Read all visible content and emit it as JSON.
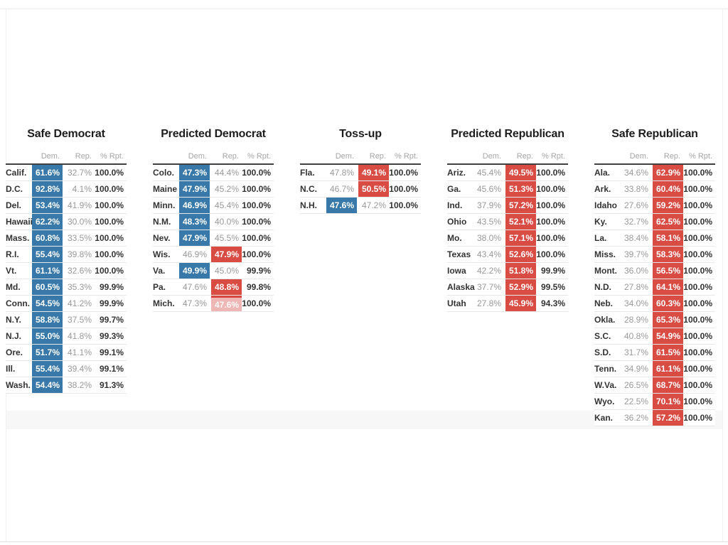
{
  "colors": {
    "dem_win_fill": "#3879aa",
    "rep_win_fill": "#d94c43",
    "rep_leading_fill": "#eeb6b4",
    "rep_leading_edge": "#d6453e",
    "muted_value_text": "#999999",
    "state_text": "#333333",
    "header_text": "#a6a6a6"
  },
  "chart_data": {
    "type": "table",
    "legend_note": "winner values: dem = blue filled Democratic cell, rep = red filled Republican cell, rep_leading = light pink Republican cell (uncalled, leading)",
    "columns": {
      "state": "",
      "dem": "Dem.",
      "rep": "Rep.",
      "rpt": "% Rpt."
    },
    "groups": [
      {
        "title": "Safe Democrat",
        "slug": "safe-democrat",
        "rows": [
          [
            "Calif.",
            "61.6%",
            "32.7%",
            "100.0%",
            "dem"
          ],
          [
            "D.C.",
            "92.8%",
            "4.1%",
            "100.0%",
            "dem"
          ],
          [
            "Del.",
            "53.4%",
            "41.9%",
            "100.0%",
            "dem"
          ],
          [
            "Hawaii",
            "62.2%",
            "30.0%",
            "100.0%",
            "dem"
          ],
          [
            "Mass.",
            "60.8%",
            "33.5%",
            "100.0%",
            "dem"
          ],
          [
            "R.I.",
            "55.4%",
            "39.8%",
            "100.0%",
            "dem"
          ],
          [
            "Vt.",
            "61.1%",
            "32.6%",
            "100.0%",
            "dem"
          ],
          [
            "Md.",
            "60.5%",
            "35.3%",
            "99.9%",
            "dem"
          ],
          [
            "Conn.",
            "54.5%",
            "41.2%",
            "99.9%",
            "dem"
          ],
          [
            "N.Y.",
            "58.8%",
            "37.5%",
            "99.7%",
            "dem"
          ],
          [
            "N.J.",
            "55.0%",
            "41.8%",
            "99.3%",
            "dem"
          ],
          [
            "Ore.",
            "51.7%",
            "41.1%",
            "99.1%",
            "dem"
          ],
          [
            "Ill.",
            "55.4%",
            "39.4%",
            "99.1%",
            "dem"
          ],
          [
            "Wash.",
            "54.4%",
            "38.2%",
            "91.3%",
            "dem"
          ]
        ]
      },
      {
        "title": "Predicted Democrat",
        "slug": "predicted-democrat",
        "rows": [
          [
            "Colo.",
            "47.3%",
            "44.4%",
            "100.0%",
            "dem"
          ],
          [
            "Maine",
            "47.9%",
            "45.2%",
            "100.0%",
            "dem"
          ],
          [
            "Minn.",
            "46.9%",
            "45.4%",
            "100.0%",
            "dem"
          ],
          [
            "N.M.",
            "48.3%",
            "40.0%",
            "100.0%",
            "dem"
          ],
          [
            "Nev.",
            "47.9%",
            "45.5%",
            "100.0%",
            "dem"
          ],
          [
            "Wis.",
            "46.9%",
            "47.9%",
            "100.0%",
            "rep"
          ],
          [
            "Va.",
            "49.9%",
            "45.0%",
            "99.9%",
            "dem"
          ],
          [
            "Pa.",
            "47.6%",
            "48.8%",
            "99.8%",
            "rep"
          ],
          [
            "Mich.",
            "47.3%",
            "47.6%",
            "100.0%",
            "rep_leading"
          ]
        ]
      },
      {
        "title": "Toss-up",
        "slug": "toss-up",
        "rows": [
          [
            "Fla.",
            "47.8%",
            "49.1%",
            "100.0%",
            "rep"
          ],
          [
            "N.C.",
            "46.7%",
            "50.5%",
            "100.0%",
            "rep"
          ],
          [
            "N.H.",
            "47.6%",
            "47.2%",
            "100.0%",
            "dem"
          ]
        ]
      },
      {
        "title": "Predicted Republican",
        "slug": "predicted-republican",
        "rows": [
          [
            "Ariz.",
            "45.4%",
            "49.5%",
            "100.0%",
            "rep"
          ],
          [
            "Ga.",
            "45.6%",
            "51.3%",
            "100.0%",
            "rep"
          ],
          [
            "Ind.",
            "37.9%",
            "57.2%",
            "100.0%",
            "rep"
          ],
          [
            "Ohio",
            "43.5%",
            "52.1%",
            "100.0%",
            "rep"
          ],
          [
            "Mo.",
            "38.0%",
            "57.1%",
            "100.0%",
            "rep"
          ],
          [
            "Texas",
            "43.4%",
            "52.6%",
            "100.0%",
            "rep"
          ],
          [
            "Iowa",
            "42.2%",
            "51.8%",
            "99.9%",
            "rep"
          ],
          [
            "Alaska",
            "37.7%",
            "52.9%",
            "99.5%",
            "rep"
          ],
          [
            "Utah",
            "27.8%",
            "45.9%",
            "94.3%",
            "rep"
          ]
        ]
      },
      {
        "title": "Safe Republican",
        "slug": "safe-republican",
        "rows": [
          [
            "Ala.",
            "34.6%",
            "62.9%",
            "100.0%",
            "rep"
          ],
          [
            "Ark.",
            "33.8%",
            "60.4%",
            "100.0%",
            "rep"
          ],
          [
            "Idaho",
            "27.6%",
            "59.2%",
            "100.0%",
            "rep"
          ],
          [
            "Ky.",
            "32.7%",
            "62.5%",
            "100.0%",
            "rep"
          ],
          [
            "La.",
            "38.4%",
            "58.1%",
            "100.0%",
            "rep"
          ],
          [
            "Miss.",
            "39.7%",
            "58.3%",
            "100.0%",
            "rep"
          ],
          [
            "Mont.",
            "36.0%",
            "56.5%",
            "100.0%",
            "rep"
          ],
          [
            "N.D.",
            "27.8%",
            "64.1%",
            "100.0%",
            "rep"
          ],
          [
            "Neb.",
            "34.0%",
            "60.3%",
            "100.0%",
            "rep"
          ],
          [
            "Okla.",
            "28.9%",
            "65.3%",
            "100.0%",
            "rep"
          ],
          [
            "S.C.",
            "40.8%",
            "54.9%",
            "100.0%",
            "rep"
          ],
          [
            "S.D.",
            "31.7%",
            "61.5%",
            "100.0%",
            "rep"
          ],
          [
            "Tenn.",
            "34.9%",
            "61.1%",
            "100.0%",
            "rep"
          ],
          [
            "W.Va.",
            "26.5%",
            "68.7%",
            "100.0%",
            "rep"
          ],
          [
            "Wyo.",
            "22.5%",
            "70.1%",
            "100.0%",
            "rep"
          ],
          [
            "Kan.",
            "36.2%",
            "57.2%",
            "100.0%",
            "rep"
          ]
        ]
      }
    ]
  }
}
